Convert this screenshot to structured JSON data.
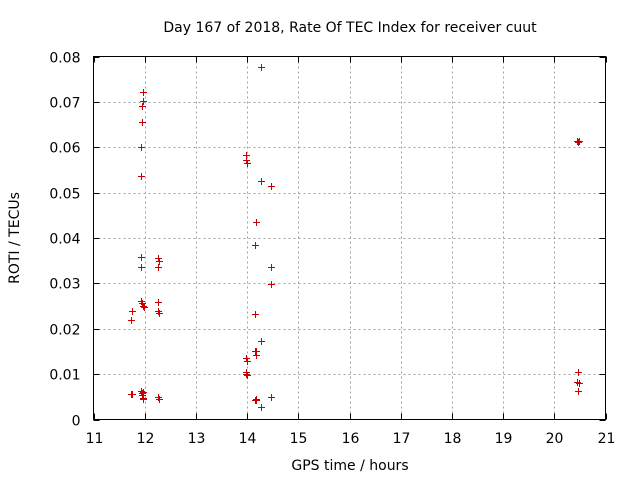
{
  "chart_data": {
    "type": "scatter",
    "title": "Day 167 of 2018, Rate Of TEC Index for receiver cuut",
    "xlabel": "GPS time / hours",
    "ylabel": "ROTI / TECUs",
    "xlim": [
      11,
      21
    ],
    "ylim": [
      0,
      0.08
    ],
    "xticks": [
      11,
      12,
      13,
      14,
      15,
      16,
      17,
      18,
      19,
      20,
      21
    ],
    "xtick_labels": [
      "11",
      "12",
      "13",
      "14",
      "15",
      "16",
      "17",
      "18",
      "19",
      "20",
      "21"
    ],
    "yticks": [
      0,
      0.01,
      0.02,
      0.03,
      0.04,
      0.05,
      0.06,
      0.07,
      0.08
    ],
    "ytick_labels": [
      "0",
      "0.01",
      "0.02",
      "0.03",
      "0.04",
      "0.05",
      "0.06",
      "0.07",
      "0.08"
    ],
    "grid": true,
    "marker": "+",
    "color": "#cc0000",
    "series": [
      {
        "name": "ROTI",
        "points": [
          [
            11.73,
            0.0056
          ],
          [
            11.75,
            0.0057
          ],
          [
            11.75,
            0.024
          ],
          [
            11.73,
            0.022
          ],
          [
            11.93,
            0.0536
          ],
          [
            11.93,
            0.06
          ],
          [
            11.94,
            0.0656
          ],
          [
            11.95,
            0.0692
          ],
          [
            11.96,
            0.0702
          ],
          [
            11.96,
            0.0722
          ],
          [
            11.93,
            0.0358
          ],
          [
            11.93,
            0.0336
          ],
          [
            11.93,
            0.0262
          ],
          [
            11.95,
            0.0256
          ],
          [
            11.97,
            0.025
          ],
          [
            11.99,
            0.0248
          ],
          [
            11.93,
            0.0062
          ],
          [
            11.94,
            0.0058
          ],
          [
            11.95,
            0.0054
          ],
          [
            11.97,
            0.006
          ],
          [
            11.96,
            0.0048
          ],
          [
            11.97,
            0.0045
          ],
          [
            12.25,
            0.0357
          ],
          [
            12.27,
            0.035
          ],
          [
            12.25,
            0.0337
          ],
          [
            12.26,
            0.026
          ],
          [
            12.25,
            0.024
          ],
          [
            12.28,
            0.0235
          ],
          [
            12.26,
            0.005
          ],
          [
            12.28,
            0.0045
          ],
          [
            13.97,
            0.0582
          ],
          [
            13.98,
            0.0573
          ],
          [
            13.99,
            0.0565
          ],
          [
            13.98,
            0.0135
          ],
          [
            13.99,
            0.013
          ],
          [
            13.97,
            0.0105
          ],
          [
            13.98,
            0.01
          ],
          [
            13.99,
            0.0097
          ],
          [
            14.18,
            0.0436
          ],
          [
            14.15,
            0.0385
          ],
          [
            14.16,
            0.0233
          ],
          [
            14.15,
            0.0152
          ],
          [
            14.17,
            0.015
          ],
          [
            14.18,
            0.0143
          ],
          [
            14.28,
            0.0172
          ],
          [
            14.15,
            0.0044
          ],
          [
            14.17,
            0.0042
          ],
          [
            14.18,
            0.0046
          ],
          [
            14.27,
            0.0027
          ],
          [
            14.28,
            0.0777
          ],
          [
            14.28,
            0.0526
          ],
          [
            14.46,
            0.0515
          ],
          [
            14.47,
            0.0336
          ],
          [
            14.46,
            0.0298
          ],
          [
            14.46,
            0.005
          ],
          [
            20.45,
            0.0614
          ],
          [
            20.47,
            0.0612
          ],
          [
            20.49,
            0.0614
          ],
          [
            20.46,
            0.0105
          ],
          [
            20.45,
            0.0082
          ],
          [
            20.48,
            0.008
          ],
          [
            20.47,
            0.0062
          ]
        ]
      }
    ]
  }
}
